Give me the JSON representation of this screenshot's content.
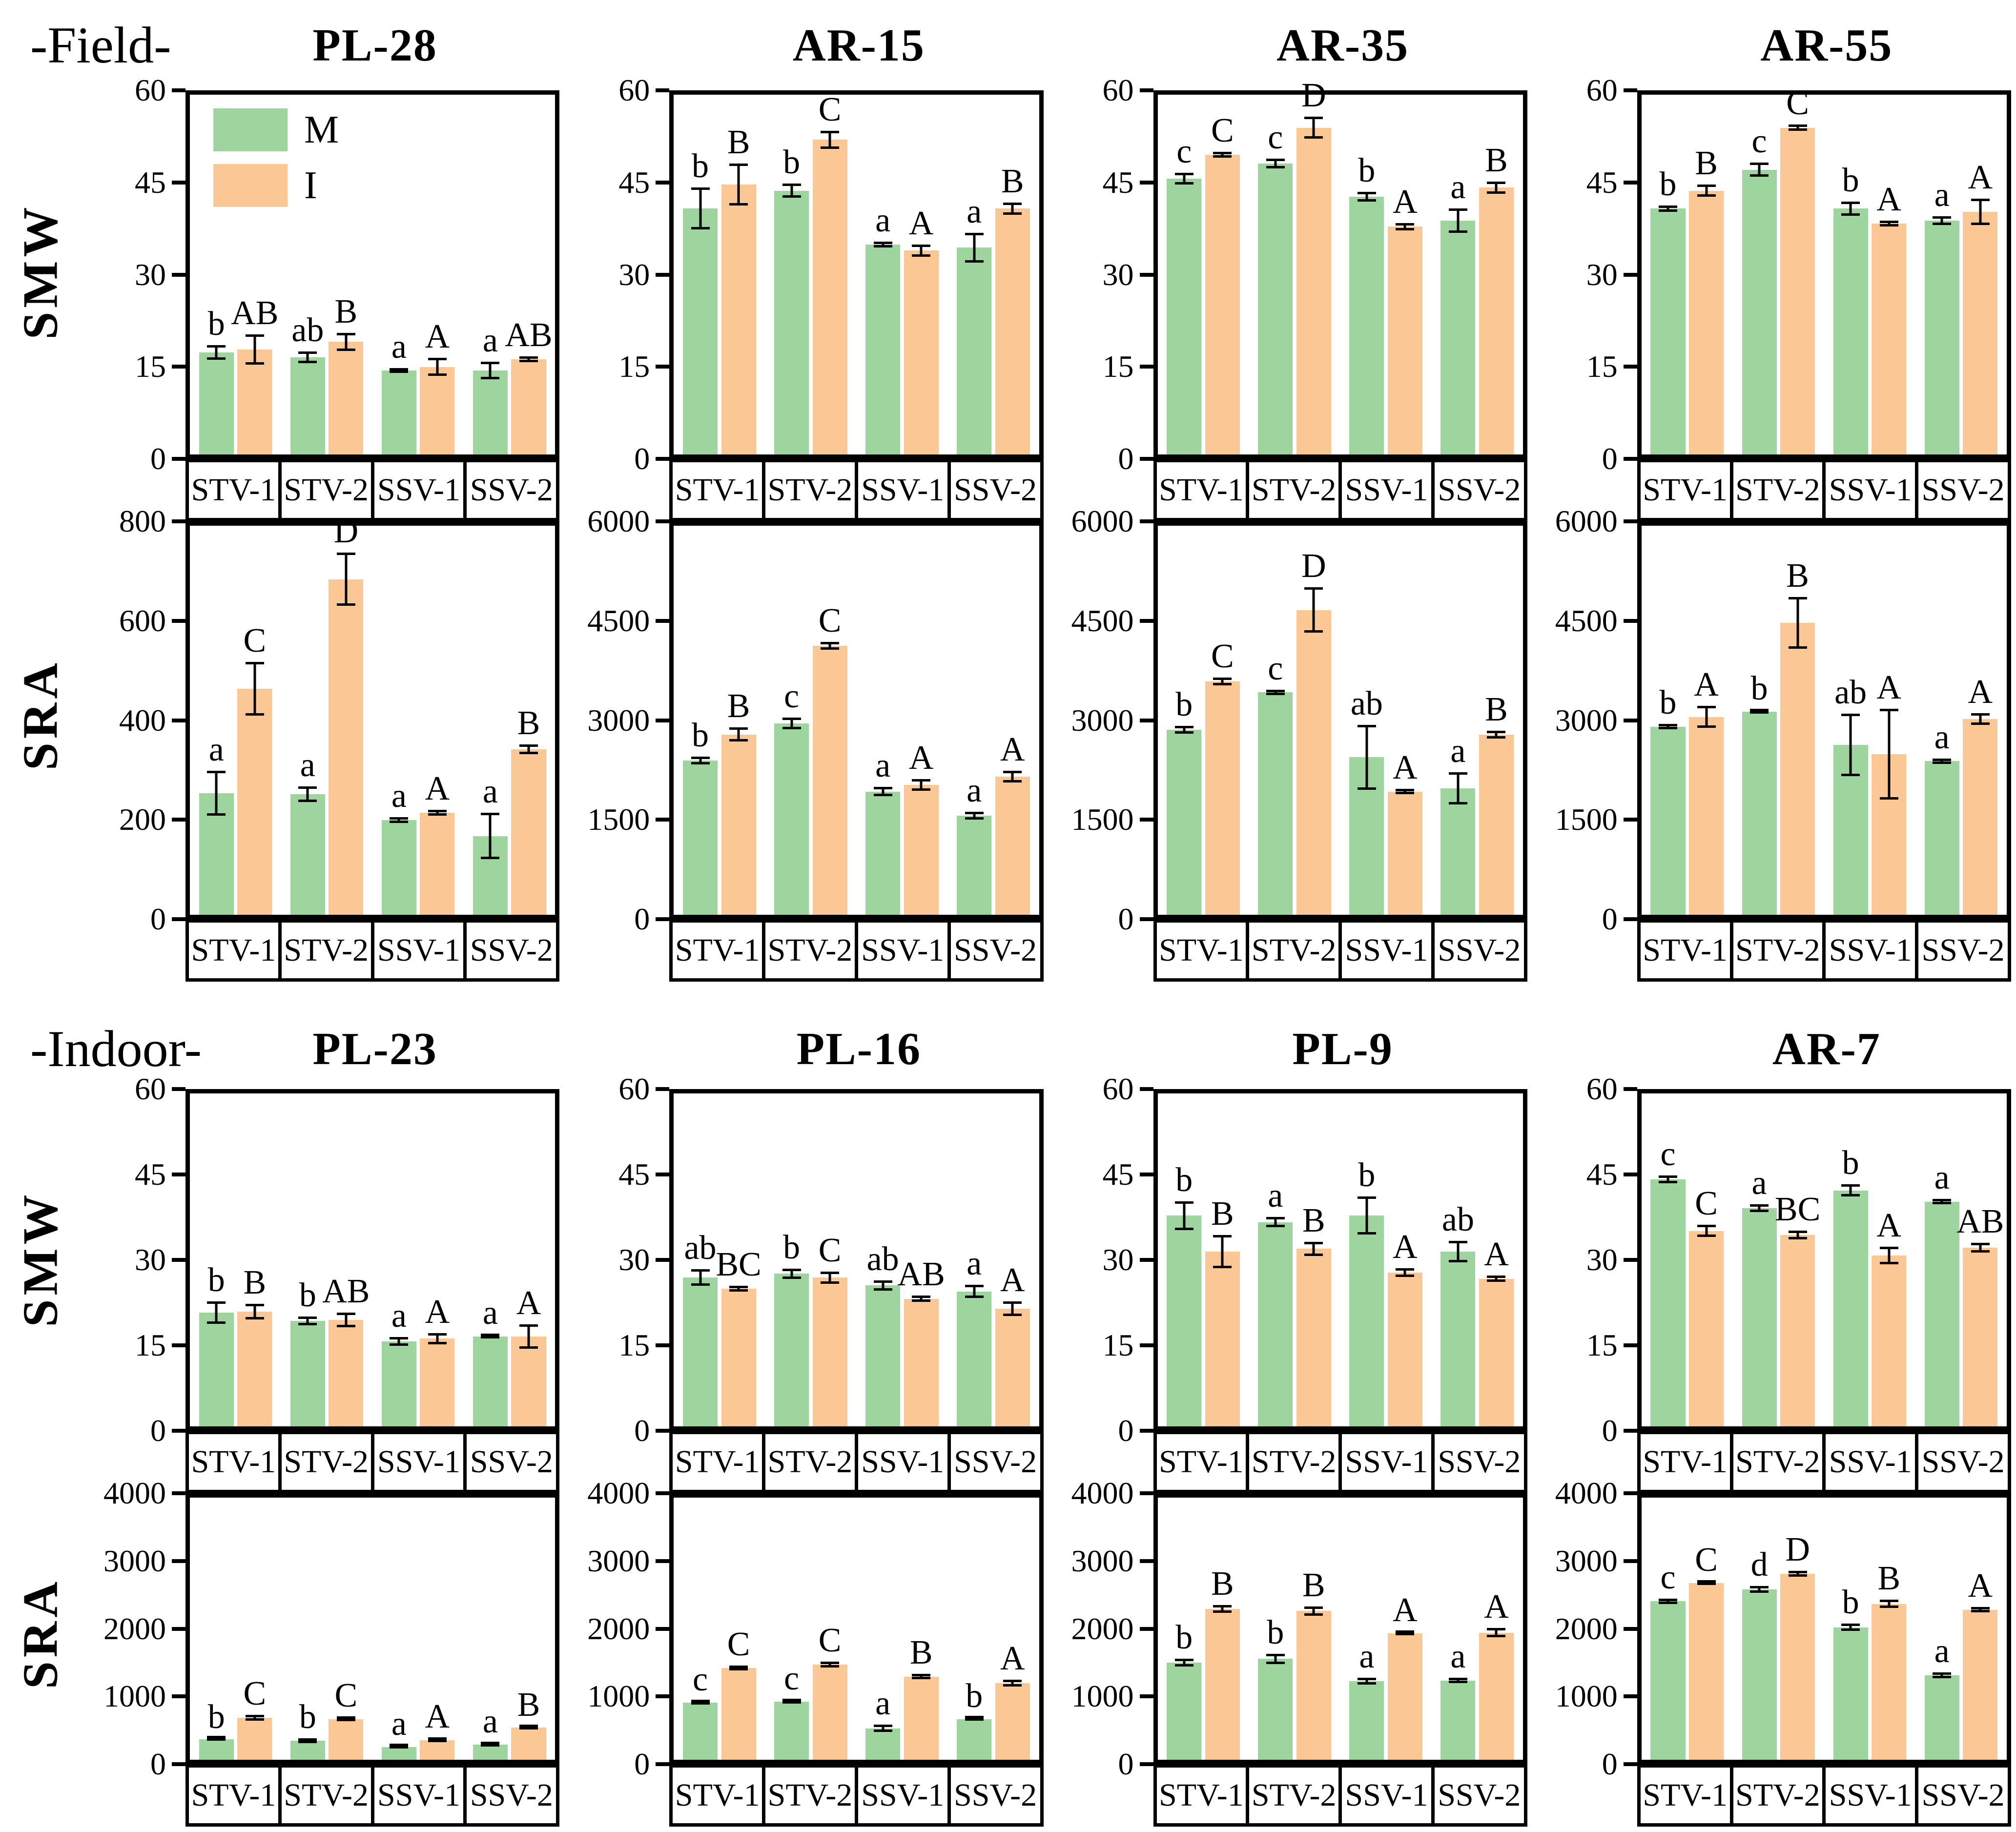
{
  "figure": {
    "background": "#ffffff"
  },
  "legend": {
    "items": [
      {
        "label": "M",
        "color": "#9ed49d"
      },
      {
        "label": "I",
        "color": "#fbc795"
      }
    ]
  },
  "categories": [
    "STV-1",
    "STV-2",
    "SSV-1",
    "SSV-2"
  ],
  "sections": [
    {
      "label": "-Field-",
      "titles": [
        "PL-28",
        "AR-15",
        "AR-35",
        "AR-55"
      ],
      "rows": [
        {
          "axis_label": "SMW"
        },
        {
          "axis_label": "SRA"
        }
      ]
    },
    {
      "label": "-Indoor-",
      "titles": [
        "PL-23",
        "PL-16",
        "PL-9",
        "AR-7"
      ],
      "rows": [
        {
          "axis_label": "SMW"
        },
        {
          "axis_label": "SRA"
        }
      ]
    }
  ],
  "chart_data": [
    {
      "type": "bar",
      "section": "Field",
      "measure": "SMW",
      "title": "PL-28",
      "ylim": [
        0,
        60
      ],
      "yticks": [
        0,
        15,
        30,
        45,
        60
      ],
      "legend": true,
      "categories": [
        "STV-1",
        "STV-2",
        "SSV-1",
        "SSV-2"
      ],
      "series": [
        {
          "name": "M",
          "color": "#9ed49d",
          "values": [
            17,
            16.2,
            14,
            14
          ],
          "errors": [
            1.2,
            1,
            0.4,
            1.5
          ],
          "letters": [
            "b",
            "ab",
            "a",
            "a"
          ]
        },
        {
          "name": "I",
          "color": "#fbc795",
          "values": [
            17.5,
            18.8,
            14.6,
            15.9
          ],
          "errors": [
            2.5,
            1.5,
            1.5,
            0.5
          ],
          "letters": [
            "AB",
            "B",
            "A",
            "AB"
          ]
        }
      ]
    },
    {
      "type": "bar",
      "section": "Field",
      "measure": "SMW",
      "title": "AR-15",
      "ylim": [
        0,
        60
      ],
      "yticks": [
        0,
        15,
        30,
        45,
        60
      ],
      "legend": false,
      "categories": [
        "STV-1",
        "STV-2",
        "SSV-1",
        "SSV-2"
      ],
      "series": [
        {
          "name": "M",
          "color": "#9ed49d",
          "values": [
            41,
            44,
            35,
            34.5
          ],
          "errors": [
            3.5,
            1.2,
            0.5,
            2.5
          ],
          "letters": [
            "b",
            "b",
            "a",
            "a"
          ]
        },
        {
          "name": "I",
          "color": "#fbc795",
          "values": [
            45,
            52.5,
            34,
            41
          ],
          "errors": [
            3.5,
            1.5,
            1,
            1
          ],
          "letters": [
            "B",
            "C",
            "A",
            "B"
          ]
        }
      ]
    },
    {
      "type": "bar",
      "section": "Field",
      "measure": "SMW",
      "title": "AR-35",
      "ylim": [
        0,
        60
      ],
      "yticks": [
        0,
        15,
        30,
        45,
        60
      ],
      "legend": false,
      "categories": [
        "STV-1",
        "STV-2",
        "SSV-1",
        "SSV-2"
      ],
      "series": [
        {
          "name": "M",
          "color": "#9ed49d",
          "values": [
            46,
            48.5,
            43,
            39
          ],
          "errors": [
            1,
            0.8,
            0.8,
            2
          ],
          "letters": [
            "c",
            "c",
            "b",
            "a"
          ]
        },
        {
          "name": "I",
          "color": "#fbc795",
          "values": [
            50,
            54.5,
            38,
            44.5
          ],
          "errors": [
            0.5,
            1.8,
            0.6,
            1
          ],
          "letters": [
            "C",
            "D",
            "A",
            "B"
          ]
        }
      ]
    },
    {
      "type": "bar",
      "section": "Field",
      "measure": "SMW",
      "title": "AR-55",
      "ylim": [
        0,
        60
      ],
      "yticks": [
        0,
        15,
        30,
        45,
        60
      ],
      "legend": false,
      "categories": [
        "STV-1",
        "STV-2",
        "SSV-1",
        "SSV-2"
      ],
      "series": [
        {
          "name": "M",
          "color": "#9ed49d",
          "values": [
            41,
            47.5,
            41,
            39
          ],
          "errors": [
            0.5,
            1.2,
            1.2,
            0.7
          ],
          "letters": [
            "b",
            "c",
            "b",
            "a"
          ]
        },
        {
          "name": "I",
          "color": "#fbc795",
          "values": [
            44,
            54.5,
            38.5,
            40.5
          ],
          "errors": [
            1,
            0.5,
            0.5,
            2.2
          ],
          "letters": [
            "B",
            "C",
            "A",
            "A"
          ]
        }
      ]
    },
    {
      "type": "bar",
      "section": "Field",
      "measure": "SRA",
      "title": "PL-28",
      "ylim": [
        0,
        800
      ],
      "yticks": [
        0,
        200,
        400,
        600,
        800
      ],
      "legend": false,
      "categories": [
        "STV-1",
        "STV-2",
        "SSV-1",
        "SSV-2"
      ],
      "series": [
        {
          "name": "M",
          "color": "#9ed49d",
          "values": [
            250,
            248,
            195,
            162
          ],
          "errors": [
            46,
            16,
            6,
            48
          ],
          "letters": [
            "a",
            "a",
            "a",
            "a"
          ]
        },
        {
          "name": "I",
          "color": "#fbc795",
          "values": [
            465,
            690,
            210,
            340
          ],
          "errors": [
            55,
            55,
            6,
            10
          ],
          "letters": [
            "C",
            "D",
            "A",
            "B"
          ]
        }
      ]
    },
    {
      "type": "bar",
      "section": "Field",
      "measure": "SRA",
      "title": "AR-15",
      "ylim": [
        0,
        6000
      ],
      "yticks": [
        0,
        1500,
        3000,
        4500,
        6000
      ],
      "legend": false,
      "categories": [
        "STV-1",
        "STV-2",
        "SSV-1",
        "SSV-2"
      ],
      "series": [
        {
          "name": "M",
          "color": "#9ed49d",
          "values": [
            2380,
            2950,
            1900,
            1530
          ],
          "errors": [
            60,
            90,
            70,
            60
          ],
          "letters": [
            "b",
            "c",
            "a",
            "a"
          ]
        },
        {
          "name": "I",
          "color": "#fbc795",
          "values": [
            2780,
            4150,
            2000,
            2130
          ],
          "errors": [
            110,
            60,
            90,
            90
          ],
          "letters": [
            "B",
            "C",
            "A",
            "A"
          ]
        }
      ]
    },
    {
      "type": "bar",
      "section": "Field",
      "measure": "SRA",
      "title": "AR-35",
      "ylim": [
        0,
        6000
      ],
      "yticks": [
        0,
        1500,
        3000,
        4500,
        6000
      ],
      "legend": false,
      "categories": [
        "STV-1",
        "STV-2",
        "SSV-1",
        "SSV-2"
      ],
      "series": [
        {
          "name": "M",
          "color": "#9ed49d",
          "values": [
            2850,
            3430,
            2430,
            1950
          ],
          "errors": [
            60,
            40,
            500,
            250
          ],
          "letters": [
            "b",
            "c",
            "ab",
            "a"
          ]
        },
        {
          "name": "I",
          "color": "#fbc795",
          "values": [
            3600,
            4700,
            1900,
            2780
          ],
          "errors": [
            60,
            350,
            40,
            60
          ],
          "letters": [
            "C",
            "D",
            "A",
            "B"
          ]
        }
      ]
    },
    {
      "type": "bar",
      "section": "Field",
      "measure": "SRA",
      "title": "AR-55",
      "ylim": [
        0,
        6000
      ],
      "yticks": [
        0,
        1500,
        3000,
        4500,
        6000
      ],
      "legend": false,
      "categories": [
        "STV-1",
        "STV-2",
        "SSV-1",
        "SSV-2"
      ],
      "series": [
        {
          "name": "M",
          "color": "#9ed49d",
          "values": [
            2900,
            3130,
            2620,
            2370
          ],
          "errors": [
            40,
            30,
            480,
            40
          ],
          "letters": [
            "b",
            "b",
            "ab",
            "a"
          ]
        },
        {
          "name": "I",
          "color": "#fbc795",
          "values": [
            3050,
            4500,
            2480,
            3020
          ],
          "errors": [
            170,
            400,
            700,
            90
          ],
          "letters": [
            "A",
            "B",
            "A",
            "A"
          ]
        }
      ]
    },
    {
      "type": "bar",
      "section": "Indoor",
      "measure": "SMW",
      "title": "PL-23",
      "ylim": [
        0,
        60
      ],
      "yticks": [
        0,
        15,
        30,
        45,
        60
      ],
      "legend": false,
      "categories": [
        "STV-1",
        "STV-2",
        "SSV-1",
        "SSV-2"
      ],
      "series": [
        {
          "name": "M",
          "color": "#9ed49d",
          "values": [
            20.5,
            19,
            15.3,
            16.2
          ],
          "errors": [
            2,
            0.8,
            0.8,
            0.4
          ],
          "letters": [
            "b",
            "b",
            "a",
            "a"
          ]
        },
        {
          "name": "I",
          "color": "#fbc795",
          "values": [
            20.7,
            19.2,
            15.8,
            16.2
          ],
          "errors": [
            1.4,
            1.3,
            1,
            2.2
          ],
          "letters": [
            "B",
            "AB",
            "A",
            "A"
          ]
        }
      ]
    },
    {
      "type": "bar",
      "section": "Indoor",
      "measure": "SMW",
      "title": "PL-16",
      "ylim": [
        0,
        60
      ],
      "yticks": [
        0,
        15,
        30,
        45,
        60
      ],
      "legend": false,
      "categories": [
        "STV-1",
        "STV-2",
        "SSV-1",
        "SSV-2"
      ],
      "series": [
        {
          "name": "M",
          "color": "#9ed49d",
          "values": [
            26.8,
            27.5,
            25.4,
            24.3
          ],
          "errors": [
            1.5,
            0.9,
            0.9,
            1.2
          ],
          "letters": [
            "ab",
            "b",
            "ab",
            "a"
          ]
        },
        {
          "name": "I",
          "color": "#fbc795",
          "values": [
            24.8,
            26.8,
            23,
            21.2
          ],
          "errors": [
            0.5,
            1.1,
            0.6,
            1.3
          ],
          "letters": [
            "BC",
            "C",
            "AB",
            "A"
          ]
        }
      ]
    },
    {
      "type": "bar",
      "section": "Indoor",
      "measure": "SMW",
      "title": "PL-9",
      "ylim": [
        0,
        60
      ],
      "yticks": [
        0,
        15,
        30,
        45,
        60
      ],
      "legend": false,
      "categories": [
        "STV-1",
        "STV-2",
        "SSV-1",
        "SSV-2"
      ],
      "series": [
        {
          "name": "M",
          "color": "#9ed49d",
          "values": [
            38,
            36.8,
            38,
            31.5
          ],
          "errors": [
            2.6,
            0.9,
            3.4,
            1.9
          ],
          "letters": [
            "b",
            "a",
            "b",
            "ab"
          ]
        },
        {
          "name": "I",
          "color": "#fbc795",
          "values": [
            31.5,
            32,
            27.7,
            26.6
          ],
          "errors": [
            3,
            1.3,
            0.8,
            0.6
          ],
          "letters": [
            "B",
            "B",
            "A",
            "A"
          ]
        }
      ]
    },
    {
      "type": "bar",
      "section": "Indoor",
      "measure": "SMW",
      "title": "AR-7",
      "ylim": [
        0,
        60
      ],
      "yticks": [
        0,
        15,
        30,
        45,
        60
      ],
      "legend": false,
      "categories": [
        "STV-1",
        "STV-2",
        "SSV-1",
        "SSV-2"
      ],
      "series": [
        {
          "name": "M",
          "color": "#9ed49d",
          "values": [
            44.5,
            39.3,
            42.5,
            40.5
          ],
          "errors": [
            0.7,
            0.7,
            1.1,
            0.5
          ],
          "letters": [
            "c",
            "a",
            "b",
            "a"
          ]
        },
        {
          "name": "I",
          "color": "#fbc795",
          "values": [
            35.2,
            34.5,
            30.8,
            32.2
          ],
          "errors": [
            1.1,
            0.8,
            1.6,
            0.9
          ],
          "letters": [
            "C",
            "BC",
            "A",
            "AB"
          ]
        }
      ]
    },
    {
      "type": "bar",
      "section": "Indoor",
      "measure": "SRA",
      "title": "PL-23",
      "ylim": [
        0,
        4000
      ],
      "yticks": [
        0,
        1000,
        2000,
        3000,
        4000
      ],
      "legend": false,
      "categories": [
        "STV-1",
        "STV-2",
        "SSV-1",
        "SSV-2"
      ],
      "series": [
        {
          "name": "M",
          "color": "#9ed49d",
          "values": [
            310,
            290,
            195,
            230
          ],
          "errors": [
            20,
            35,
            25,
            30
          ],
          "letters": [
            "b",
            "b",
            "a",
            "a"
          ]
        },
        {
          "name": "I",
          "color": "#fbc795",
          "values": [
            640,
            620,
            300,
            490
          ],
          "errors": [
            45,
            35,
            35,
            25
          ],
          "letters": [
            "C",
            "C",
            "A",
            "B"
          ]
        }
      ]
    },
    {
      "type": "bar",
      "section": "Indoor",
      "measure": "SRA",
      "title": "PL-16",
      "ylim": [
        0,
        4000
      ],
      "yticks": [
        0,
        1000,
        2000,
        3000,
        4000
      ],
      "legend": false,
      "categories": [
        "STV-1",
        "STV-2",
        "SSV-1",
        "SSV-2"
      ],
      "series": [
        {
          "name": "M",
          "color": "#9ed49d",
          "values": [
            870,
            890,
            480,
            620
          ],
          "errors": [
            30,
            30,
            55,
            25
          ],
          "letters": [
            "c",
            "c",
            "a",
            "b"
          ]
        },
        {
          "name": "I",
          "color": "#fbc795",
          "values": [
            1400,
            1450,
            1270,
            1170
          ],
          "errors": [
            40,
            45,
            40,
            50
          ],
          "letters": [
            "C",
            "C",
            "B",
            "A"
          ]
        }
      ]
    },
    {
      "type": "bar",
      "section": "Indoor",
      "measure": "SRA",
      "title": "PL-9",
      "ylim": [
        0,
        4000
      ],
      "yticks": [
        0,
        1000,
        2000,
        3000,
        4000
      ],
      "legend": false,
      "categories": [
        "STV-1",
        "STV-2",
        "SSV-1",
        "SSV-2"
      ],
      "series": [
        {
          "name": "M",
          "color": "#9ed49d",
          "values": [
            1480,
            1540,
            1200,
            1210
          ],
          "errors": [
            60,
            80,
            50,
            40
          ],
          "letters": [
            "b",
            "b",
            "a",
            "a"
          ]
        },
        {
          "name": "I",
          "color": "#fbc795",
          "values": [
            2300,
            2270,
            1930,
            1940
          ],
          "errors": [
            60,
            70,
            30,
            70
          ],
          "letters": [
            "B",
            "B",
            "A",
            "A"
          ]
        }
      ]
    },
    {
      "type": "bar",
      "section": "Indoor",
      "measure": "SRA",
      "title": "AR-7",
      "ylim": [
        0,
        4000
      ],
      "yticks": [
        0,
        1000,
        2000,
        3000,
        4000
      ],
      "legend": false,
      "categories": [
        "STV-1",
        "STV-2",
        "SSV-1",
        "SSV-2"
      ],
      "series": [
        {
          "name": "M",
          "color": "#9ed49d",
          "values": [
            2420,
            2600,
            2020,
            1290
          ],
          "errors": [
            40,
            55,
            55,
            45
          ],
          "letters": [
            "c",
            "d",
            "b",
            "a"
          ]
        },
        {
          "name": "I",
          "color": "#fbc795",
          "values": [
            2700,
            2840,
            2380,
            2290
          ],
          "errors": [
            30,
            45,
            65,
            40
          ],
          "letters": [
            "C",
            "D",
            "B",
            "A"
          ]
        }
      ]
    }
  ]
}
